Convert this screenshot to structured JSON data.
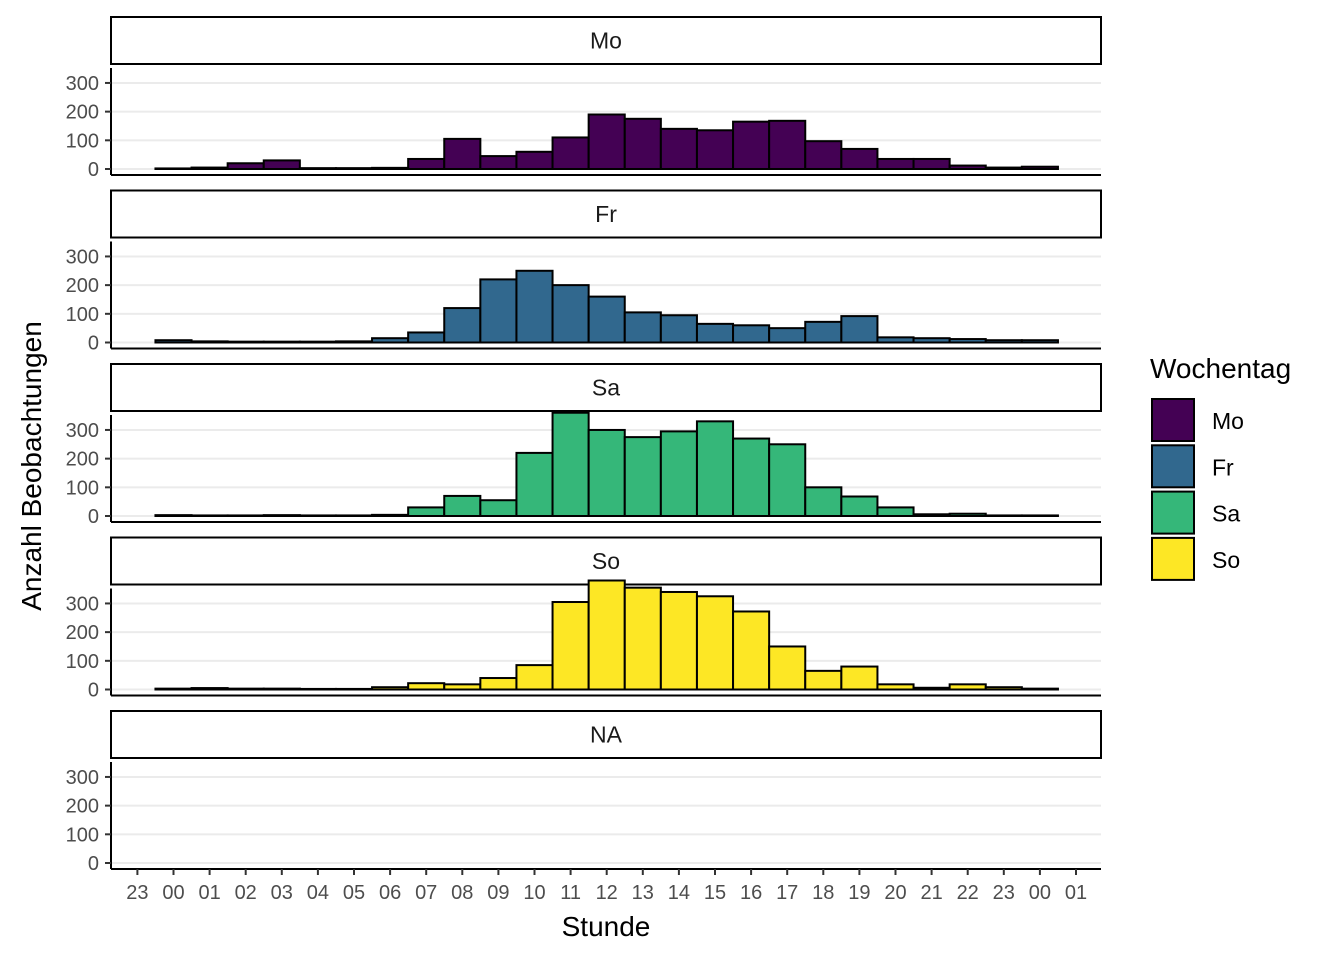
{
  "chart_data": {
    "type": "bar",
    "subtype": "faceted histogram",
    "xlabel": "Stunde",
    "ylabel": "Anzahl Beobachtungen",
    "x_tick_labels": [
      "23",
      "00",
      "01",
      "02",
      "03",
      "04",
      "05",
      "06",
      "07",
      "08",
      "09",
      "10",
      "11",
      "12",
      "13",
      "14",
      "15",
      "16",
      "17",
      "18",
      "19",
      "20",
      "21",
      "22",
      "23",
      "00",
      "01"
    ],
    "bar_categories": [
      "00",
      "01",
      "02",
      "03",
      "04",
      "05",
      "06",
      "07",
      "08",
      "09",
      "10",
      "11",
      "12",
      "13",
      "14",
      "15",
      "16",
      "17",
      "18",
      "19",
      "20",
      "21",
      "22",
      "23",
      "00"
    ],
    "y_ticks": [
      0,
      100,
      200,
      300
    ],
    "ylim": [
      0,
      380
    ],
    "grid": "horizontal major gridlines",
    "legend": {
      "title": "Wochentag",
      "placement": "right",
      "entries": [
        {
          "label": "Mo",
          "color": "#440154"
        },
        {
          "label": "Fr",
          "color": "#31688E"
        },
        {
          "label": "Sa",
          "color": "#35B779"
        },
        {
          "label": "So",
          "color": "#FDE725"
        }
      ]
    },
    "facets": [
      {
        "label": "Mo",
        "color": "#440154",
        "values": [
          2,
          5,
          20,
          30,
          3,
          3,
          4,
          35,
          105,
          45,
          60,
          110,
          190,
          175,
          140,
          135,
          165,
          168,
          97,
          70,
          35,
          35,
          12,
          5,
          8
        ]
      },
      {
        "label": "Fr",
        "color": "#31688E",
        "values": [
          8,
          4,
          3,
          3,
          3,
          4,
          15,
          35,
          120,
          220,
          250,
          200,
          160,
          105,
          95,
          65,
          60,
          50,
          72,
          92,
          18,
          15,
          12,
          8,
          8
        ]
      },
      {
        "label": "Sa",
        "color": "#35B779",
        "values": [
          3,
          2,
          2,
          3,
          2,
          2,
          4,
          30,
          70,
          55,
          220,
          360,
          300,
          275,
          295,
          330,
          270,
          250,
          100,
          68,
          30,
          6,
          8,
          2,
          2
        ]
      },
      {
        "label": "So",
        "color": "#FDE725",
        "values": [
          3,
          5,
          3,
          3,
          2,
          2,
          8,
          22,
          18,
          40,
          85,
          305,
          380,
          355,
          340,
          325,
          272,
          150,
          65,
          80,
          18,
          6,
          18,
          8,
          3
        ]
      },
      {
        "label": "NA",
        "color": "#808080",
        "values": []
      }
    ]
  }
}
